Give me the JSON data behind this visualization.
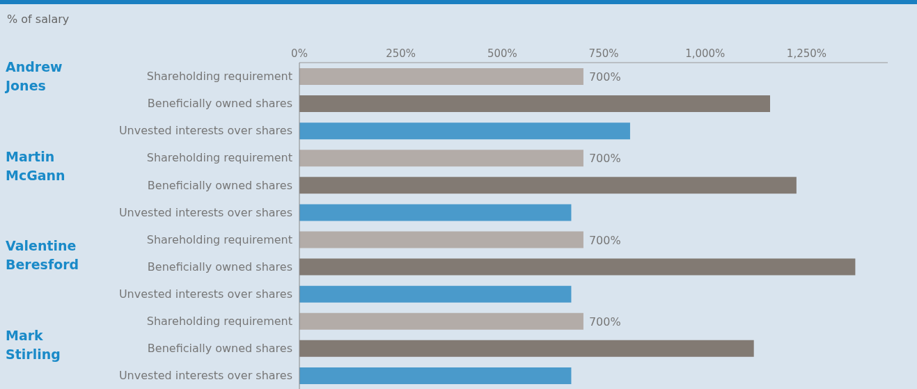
{
  "chart_data": {
    "type": "bar",
    "orientation": "horizontal",
    "xlabel": "% of salary",
    "categories": [
      "Shareholding requirement",
      "Beneficially owned shares",
      "Unvested interests over shares",
      "Shareholding requirement",
      "Beneficially owned shares",
      "Unvested interests over shares",
      "Shareholding requirement",
      "Beneficially owned shares",
      "Unvested interests over shares",
      "Shareholding requirement",
      "Beneficially owned shares",
      "Unvested interests over shares"
    ],
    "values": [
      700,
      1160,
      815,
      700,
      1225,
      670,
      700,
      1370,
      670,
      700,
      1120,
      670
    ],
    "colors": [
      "#b3aca8",
      "#827a73",
      "#4a9acb",
      "#b3aca8",
      "#827a73",
      "#4a9acb",
      "#b3aca8",
      "#827a73",
      "#4a9acb",
      "#b3aca8",
      "#827a73",
      "#4a9acb"
    ],
    "value_labels": [
      "700%",
      null,
      null,
      "700%",
      null,
      null,
      "700%",
      null,
      null,
      "700%",
      null,
      null
    ],
    "xlim": [
      0,
      1450
    ],
    "xticks": [
      {
        "value": 0,
        "label": "0%"
      },
      {
        "value": 250,
        "label": "250%"
      },
      {
        "value": 500,
        "label": "500%"
      },
      {
        "value": 750,
        "label": "750%"
      },
      {
        "value": 1000,
        "label": "1,000%"
      },
      {
        "value": 1250,
        "label": "1,250%"
      }
    ],
    "annotations": [
      "Andrew Jones",
      "Martin McGann",
      "Valentine Beresford",
      "Mark Stirling"
    ],
    "grid": false,
    "legend": false
  }
}
